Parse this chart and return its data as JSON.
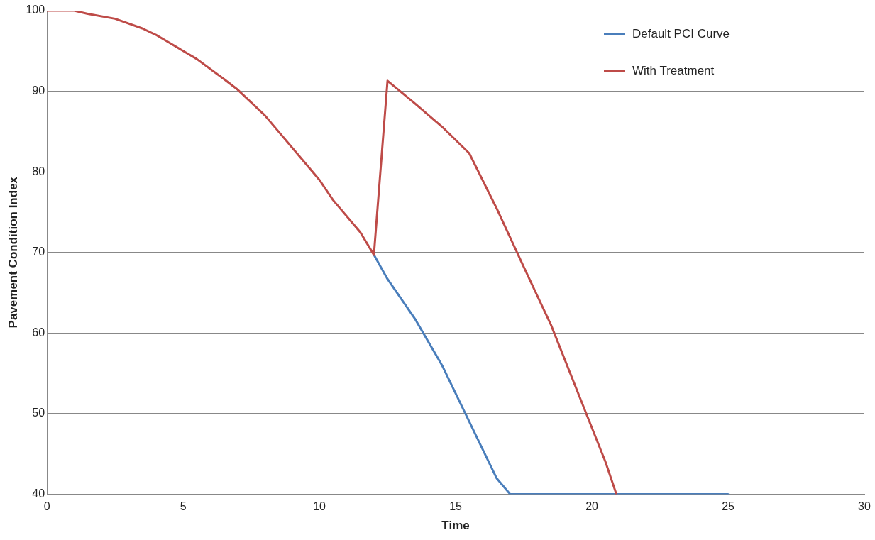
{
  "chart_data": {
    "type": "line",
    "xlabel": "Time",
    "ylabel": "Pavement Condition Index",
    "xlim": [
      0,
      30
    ],
    "xticks": [
      0,
      5,
      10,
      15,
      20,
      25,
      30
    ],
    "ylim": [
      40,
      100
    ],
    "yticks": [
      40,
      50,
      60,
      70,
      80,
      90,
      100
    ],
    "grid": "y",
    "legend": "top right",
    "marker": "none",
    "line_style": "solid",
    "series": [
      {
        "name": "Default PCI Curve",
        "color": "#4a7ebb",
        "x": [
          12,
          12.5,
          13.5,
          14.5,
          15,
          15.5,
          16,
          16.5,
          17,
          25
        ],
        "values": [
          69.7,
          66.7,
          61.8,
          56,
          52.5,
          49,
          45.5,
          42,
          40,
          40
        ]
      },
      {
        "name": "With Treatment",
        "color": "#be4b48",
        "x": [
          0,
          1,
          1.5,
          2.5,
          3.5,
          4,
          5,
          5.5,
          6.5,
          7,
          8,
          8.5,
          9.5,
          10,
          10.5,
          11.5,
          12,
          12.5,
          13.5,
          14.5,
          15.5,
          16.5,
          17.5,
          18.5,
          19.5,
          20.5,
          20.9
        ],
        "values": [
          100,
          100,
          99.6,
          99,
          97.8,
          97,
          95,
          94,
          91.5,
          90.2,
          87,
          85,
          81,
          79,
          76.5,
          72.5,
          69.7,
          91.3,
          88.5,
          85.6,
          82.3,
          75.5,
          68.2,
          61,
          52.5,
          44,
          40
        ]
      }
    ]
  }
}
